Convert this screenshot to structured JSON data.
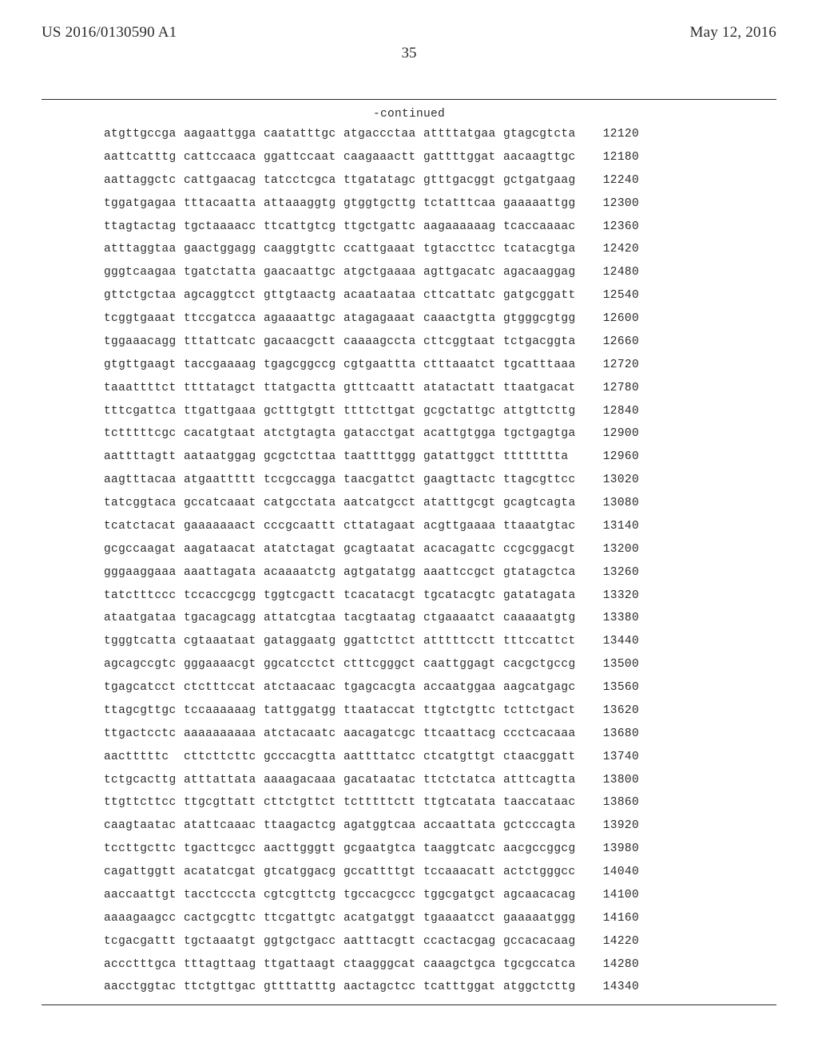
{
  "header": {
    "left": "US 2016/0130590 A1",
    "right": "May 12, 2016",
    "page_number": "35"
  },
  "continued_label": "-continued",
  "sequence": {
    "font_family": "Courier New",
    "font_size_pt": 11,
    "text_color": "#2a2a2a",
    "background_color": "#ffffff",
    "rows": [
      {
        "groups": [
          "atgttgccga",
          "aagaattgga",
          "caatatttgc",
          "atgaccctaa",
          "attttatgaa",
          "gtagcgtcta"
        ],
        "pos": 12120
      },
      {
        "groups": [
          "aattcatttg",
          "cattccaaca",
          "ggattccaat",
          "caagaaactt",
          "gattttggat",
          "aacaagttgc"
        ],
        "pos": 12180
      },
      {
        "groups": [
          "aattaggctc",
          "cattgaacag",
          "tatcctcgca",
          "ttgatatagc",
          "gtttgacggt",
          "gctgatgaag"
        ],
        "pos": 12240
      },
      {
        "groups": [
          "tggatgagaa",
          "tttacaatta",
          "attaaaggtg",
          "gtggtgcttg",
          "tctatttcaa",
          "gaaaaattgg"
        ],
        "pos": 12300
      },
      {
        "groups": [
          "ttagtactag",
          "tgctaaaacc",
          "ttcattgtcg",
          "ttgctgattc",
          "aagaaaaaag",
          "tcaccaaaac"
        ],
        "pos": 12360
      },
      {
        "groups": [
          "atttaggtaa",
          "gaactggagg",
          "caaggtgttc",
          "ccattgaaat",
          "tgtaccttcc",
          "tcatacgtga"
        ],
        "pos": 12420
      },
      {
        "groups": [
          "gggtcaagaa",
          "tgatctatta",
          "gaacaattgc",
          "atgctgaaaa",
          "agttgacatc",
          "agacaaggag"
        ],
        "pos": 12480
      },
      {
        "groups": [
          "gttctgctaa",
          "agcaggtcct",
          "gttgtaactg",
          "acaataataa",
          "cttcattatc",
          "gatgcggatt"
        ],
        "pos": 12540
      },
      {
        "groups": [
          "tcggtgaaat",
          "ttccgatcca",
          "agaaaattgc",
          "atagagaaat",
          "caaactgtta",
          "gtgggcgtgg"
        ],
        "pos": 12600
      },
      {
        "groups": [
          "tggaaacagg",
          "tttattcatc",
          "gacaacgctt",
          "caaaagccta",
          "cttcggtaat",
          "tctgacggta"
        ],
        "pos": 12660
      },
      {
        "groups": [
          "gtgttgaagt",
          "taccgaaaag",
          "tgagcggccg",
          "cgtgaattta",
          "ctttaaatct",
          "tgcatttaaa"
        ],
        "pos": 12720
      },
      {
        "groups": [
          "taaattttct",
          "ttttatagct",
          "ttatgactta",
          "gtttcaattt",
          "atatactatt",
          "ttaatgacat"
        ],
        "pos": 12780
      },
      {
        "groups": [
          "tttcgattca",
          "ttgattgaaa",
          "gctttgtgtt",
          "ttttcttgat",
          "gcgctattgc",
          "attgttcttg"
        ],
        "pos": 12840
      },
      {
        "groups": [
          "tctttttcgc",
          "cacatgtaat",
          "atctgtagta",
          "gatacctgat",
          "acattgtgga",
          "tgctgagtga"
        ],
        "pos": 12900
      },
      {
        "groups": [
          "aattttagtt",
          "aataatggag",
          "gcgctcttaa",
          "taattttggg",
          "gatattggct",
          "tttttttta"
        ],
        "pos": 12960
      },
      {
        "groups": [
          "aagtttacaa",
          "atgaattttt",
          "tccgccagga",
          "taacgattct",
          "gaagttactc",
          "ttagcgttcc"
        ],
        "pos": 13020
      },
      {
        "groups": [
          "tatcggtaca",
          "gccatcaaat",
          "catgcctata",
          "aatcatgcct",
          "atatttgcgt",
          "gcagtcagta"
        ],
        "pos": 13080
      },
      {
        "groups": [
          "tcatctacat",
          "gaaaaaaact",
          "cccgcaattt",
          "cttatagaat",
          "acgttgaaaa",
          "ttaaatgtac"
        ],
        "pos": 13140
      },
      {
        "groups": [
          "gcgccaagat",
          "aagataacat",
          "atatctagat",
          "gcagtaatat",
          "acacagattc",
          "ccgcggacgt"
        ],
        "pos": 13200
      },
      {
        "groups": [
          "gggaaggaaa",
          "aaattagata",
          "acaaaatctg",
          "agtgatatgg",
          "aaattccgct",
          "gtatagctca"
        ],
        "pos": 13260
      },
      {
        "groups": [
          "tatctttccc",
          "tccaccgcgg",
          "tggtcgactt",
          "tcacatacgt",
          "tgcatacgtc",
          "gatatagata"
        ],
        "pos": 13320
      },
      {
        "groups": [
          "ataatgataa",
          "tgacagcagg",
          "attatcgtaa",
          "tacgtaatag",
          "ctgaaaatct",
          "caaaaatgtg"
        ],
        "pos": 13380
      },
      {
        "groups": [
          "tgggtcatta",
          "cgtaaataat",
          "gataggaatg",
          "ggattcttct",
          "atttttcctt",
          "tttccattct"
        ],
        "pos": 13440
      },
      {
        "groups": [
          "agcagccgtc",
          "gggaaaacgt",
          "ggcatcctct",
          "ctttcgggct",
          "caattggagt",
          "cacgctgccg"
        ],
        "pos": 13500
      },
      {
        "groups": [
          "tgagcatcct",
          "ctctttccat",
          "atctaacaac",
          "tgagcacgta",
          "accaatggaa",
          "aagcatgagc"
        ],
        "pos": 13560
      },
      {
        "groups": [
          "ttagcgttgc",
          "tccaaaaaag",
          "tattggatgg",
          "ttaataccat",
          "ttgtctgttc",
          "tcttctgact"
        ],
        "pos": 13620
      },
      {
        "groups": [
          "ttgactcctc",
          "aaaaaaaaaa",
          "atctacaatc",
          "aacagatcgc",
          "ttcaattacg",
          "ccctcacaaa"
        ],
        "pos": 13680
      },
      {
        "groups": [
          "aactttttc",
          "cttcttcttc",
          "gcccacgtta",
          "aattttatcc",
          "ctcatgttgt",
          "ctaacggatt"
        ],
        "pos": 13740
      },
      {
        "groups": [
          "tctgcacttg",
          "atttattata",
          "aaaagacaaa",
          "gacataatac",
          "ttctctatca",
          "atttcagtta"
        ],
        "pos": 13800
      },
      {
        "groups": [
          "ttgttcttcc",
          "ttgcgttatt",
          "cttctgttct",
          "tctttttctt",
          "ttgtcatata",
          "taaccataac"
        ],
        "pos": 13860
      },
      {
        "groups": [
          "caagtaatac",
          "atattcaaac",
          "ttaagactcg",
          "agatggtcaa",
          "accaattata",
          "gctcccagta"
        ],
        "pos": 13920
      },
      {
        "groups": [
          "tccttgcttc",
          "tgacttcgcc",
          "aacttgggtt",
          "gcgaatgtca",
          "taaggtcatc",
          "aacgccggcg"
        ],
        "pos": 13980
      },
      {
        "groups": [
          "cagattggtt",
          "acatatcgat",
          "gtcatggacg",
          "gccattttgt",
          "tccaaacatt",
          "actctgggcc"
        ],
        "pos": 14040
      },
      {
        "groups": [
          "aaccaattgt",
          "tacctcccta",
          "cgtcgttctg",
          "tgccacgccc",
          "tggcgatgct",
          "agcaacacag"
        ],
        "pos": 14100
      },
      {
        "groups": [
          "aaaagaagcc",
          "cactgcgttc",
          "ttcgattgtc",
          "acatgatggt",
          "tgaaaatcct",
          "gaaaaatggg"
        ],
        "pos": 14160
      },
      {
        "groups": [
          "tcgacgattt",
          "tgctaaatgt",
          "ggtgctgacc",
          "aatttacgtt",
          "ccactacgag",
          "gccacacaag"
        ],
        "pos": 14220
      },
      {
        "groups": [
          "accctttgca",
          "tttagttaag",
          "ttgattaagt",
          "ctaagggcat",
          "caaagctgca",
          "tgcgccatca"
        ],
        "pos": 14280
      },
      {
        "groups": [
          "aacctggtac",
          "ttctgttgac",
          "gttttatttg",
          "aactagctcc",
          "tcatttggat",
          "atggctcttg"
        ],
        "pos": 14340
      }
    ]
  }
}
